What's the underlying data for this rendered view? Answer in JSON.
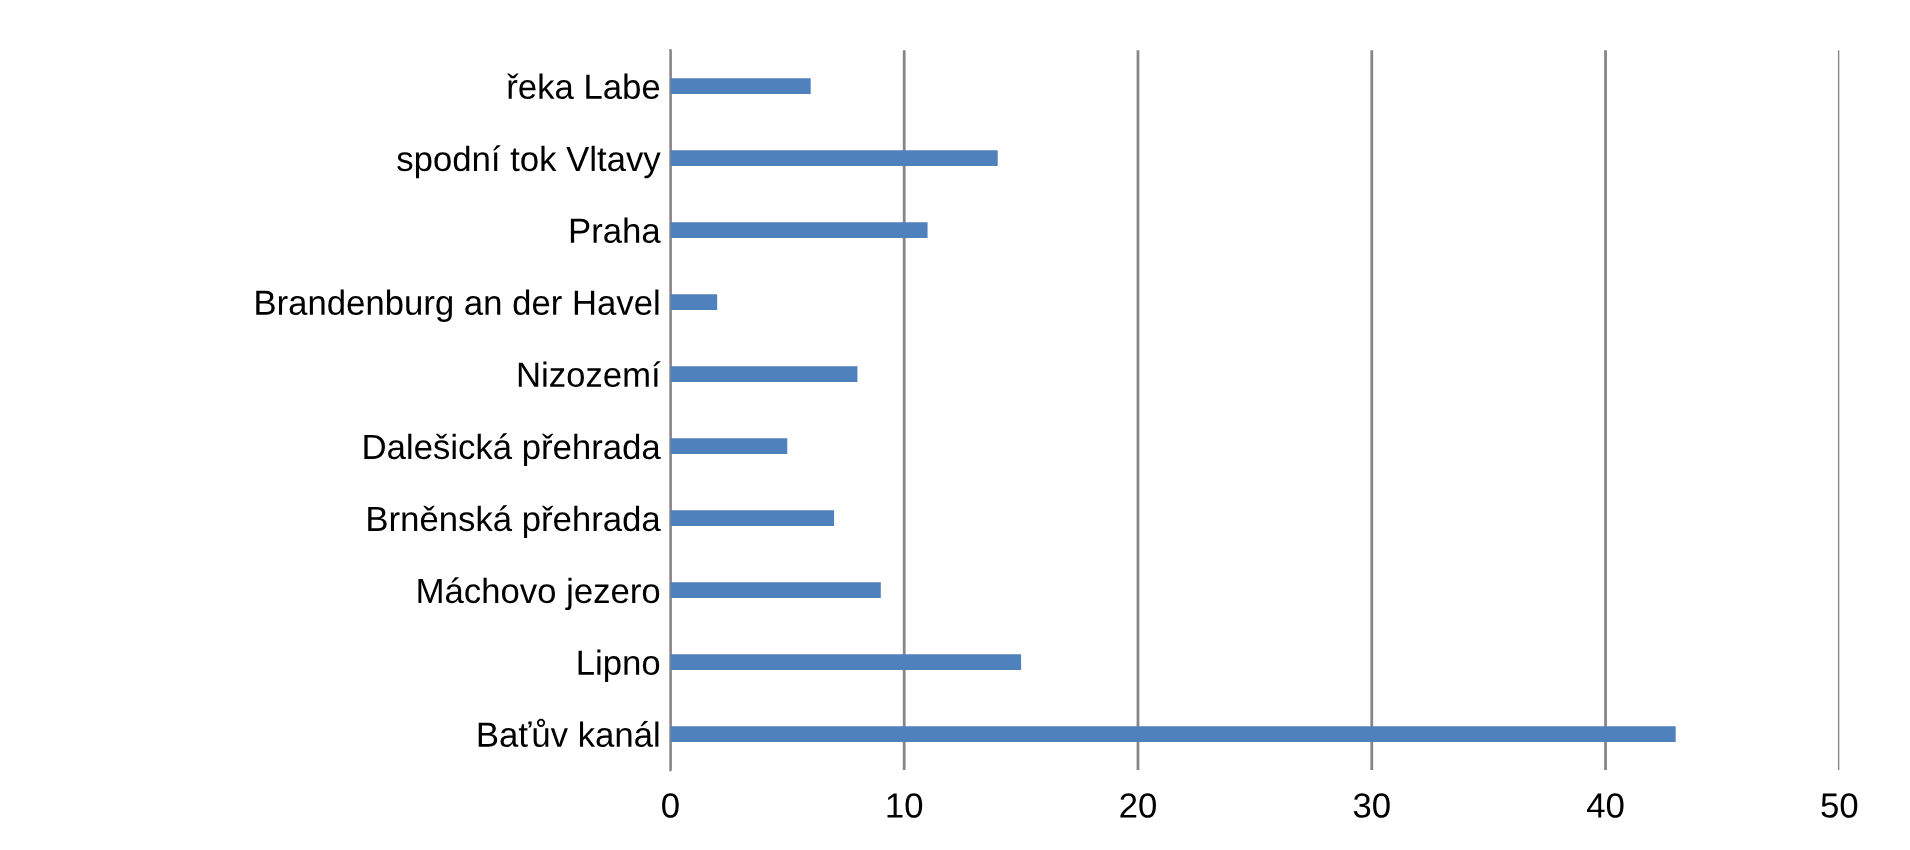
{
  "chart_data": {
    "type": "bar",
    "orientation": "horizontal",
    "categories": [
      "řeka Labe",
      "spodní tok Vltavy",
      "Praha",
      "Brandenburg an der Havel",
      "Nizozemí",
      "Dalešická přehrada",
      "Brněnská přehrada",
      "Máchovo jezero",
      "Lipno",
      "Baťův kanál"
    ],
    "values": [
      6,
      14,
      11,
      2,
      8,
      5,
      7,
      9,
      15,
      43
    ],
    "color": "#4f81bd",
    "xlim": [
      0,
      50
    ],
    "xticks": [
      0,
      10,
      20,
      30,
      40,
      50
    ],
    "grid": "x",
    "legend": false
  }
}
